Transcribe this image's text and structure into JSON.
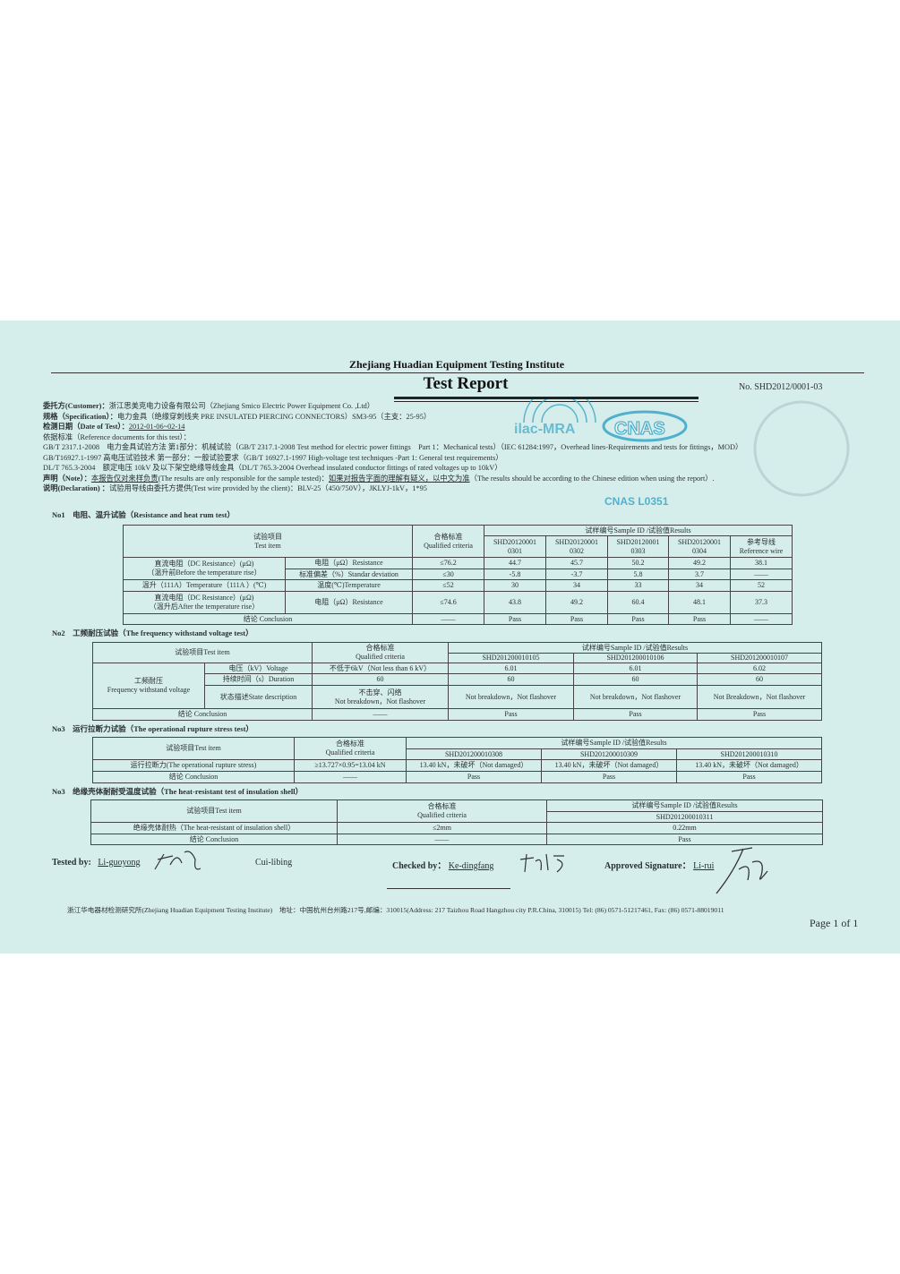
{
  "header": {
    "institute": "Zhejiang Huadian Equipment Testing Institute",
    "title": "Test Report",
    "report_no": "No. SHD2012/0001-03"
  },
  "info": {
    "customer_label": "委托方(Customer)：",
    "customer": "浙江思美克电力设备有限公司（Zhejiang Smico Electric Power Equipment Co. ,Ltd）",
    "spec_label": "规格（Specification）：",
    "spec": "电力金具（绝缘穿刺线夹 PRE INSULATED PIERCING CONNECTORS）SM3-95（主支：25-95）",
    "date_label": "检测日期（Date of Test）：",
    "date": "2012-01-06~02-14",
    "ref_label": "依据标准（Reference documents for this test）：",
    "ref1": "GB/T 2317.1-2008　电力金具试验方法 第1部分：机械试验（GB/T 2317.1-2008 Test method for electric power fittings　Part 1：Mechanical tests）（IEC 61284:1997，Overhead lines-Requirements and tests for fittings，MOD）",
    "ref2": "GB/T16927.1-1997 高电压试验技术 第一部分：一般试验要求（GB/T 16927.1-1997 High-voltage test techniques -Part 1: General test requirements）",
    "ref3": "DL/T 765.3-2004　额定电压 10kV 及以下架空绝缘导线金具（DL/T 765.3-2004 Overhead insulated conductor fittings of rated voltages up to 10kV）",
    "note_label": "声明（Note）：",
    "note_cn1": "本报告仅对来样负责",
    "note_en1": "(The results are only responsible for the sample tested)：",
    "note_cn2": "如果对报告字面的理解有疑义，以中文为准",
    "note_en2": "（The results should be according to the Chinese edition when using the report）.",
    "decl_label": "说明(Declaration) ：",
    "decl": "试验用导线由委托方提供(Test wire provided by the client)：BLV-25（450/750V），JKLYJ-1kV，1*95"
  },
  "stamps": {
    "ilac": "ilac-MRA",
    "cnas": "CNAS",
    "cnas_no": "CNAS L0351",
    "seal": "浙江华电器材检测研究所 检验专用章"
  },
  "colors": {
    "paper": "#d6eeeb",
    "stamp": "#3aa6c8"
  },
  "t1": {
    "heading": "No1　电阻、温升试验（Resistance and heat rum test）",
    "h_item": "试验项目",
    "h_item_en": "Test item",
    "h_crit": "合格标准",
    "h_crit_en": "Qualified criteria",
    "h_results": "试样编号Sample ID /试验值Results",
    "samples": [
      [
        "SHD20120001",
        "0301"
      ],
      [
        "SHD20120001",
        "0302"
      ],
      [
        "SHD20120001",
        "0303"
      ],
      [
        "SHD20120001",
        "0304"
      ],
      [
        "参考导线",
        "Reference wire"
      ]
    ],
    "rows": [
      {
        "item": "直流电阻（DC Resistance）(μΩ)",
        "item2": "（温升前Before the temperature rise）",
        "sub": "电阻（μΩ）Resistance",
        "crit": "≤76.2",
        "vals": [
          "44.7",
          "45.7",
          "50.2",
          "49.2",
          "38.1"
        ]
      },
      {
        "sub": "标准偏差（%）Standar deviation",
        "crit": "≤30",
        "vals": [
          "-5.8",
          "-3.7",
          "5.8",
          "3.7",
          "——"
        ]
      },
      {
        "item": "温升（111A）Temperature（111A ）(℃)",
        "sub": "温度(℃)Temperature",
        "crit": "≤52",
        "vals": [
          "30",
          "34",
          "33",
          "34",
          "52"
        ]
      },
      {
        "item": "直流电阻（DC Resistance）(μΩ)",
        "item2": "（温升后After the temperature rise）",
        "sub": "电阻（μΩ）Resistance",
        "crit": "≤74.6",
        "vals": [
          "43.8",
          "49.2",
          "60.4",
          "48.1",
          "37.3"
        ]
      }
    ],
    "conclusion": "结论 Conclusion",
    "conc_crit": "——",
    "conc_vals": [
      "Pass",
      "Pass",
      "Pass",
      "Pass",
      "——"
    ]
  },
  "t2": {
    "heading": "No2　工频耐压试验（The frequency withstand voltage test）",
    "h_item": "试验项目Test item",
    "h_crit": "合格标准",
    "h_crit_en": "Qualified criteria",
    "h_results": "试样编号Sample ID /试验值Results",
    "samples": [
      "SHD201200010105",
      "SHD201200010106",
      "SHD201200010107"
    ],
    "group": "工频耐压",
    "group_en": "Frequency withstand voltage",
    "rows": [
      {
        "sub": "电压（kV）Voltage",
        "crit": "不低于6kV（Not less than 6 kV）",
        "vals": [
          "6.01",
          "6.01",
          "6.02"
        ]
      },
      {
        "sub": "持续时间（s）Duration",
        "crit": "60",
        "vals": [
          "60",
          "60",
          "60"
        ]
      },
      {
        "sub": "状态描述State description",
        "crit": "不击穿、闪络",
        "crit2": "Not breakdown，Not flashover",
        "vals": [
          "Not breakdown，Not flashover",
          "Not breakdown，Not flashover",
          "Not Breakdown，Not flashover"
        ]
      }
    ],
    "conclusion": "结论 Conclusion",
    "conc_crit": "——",
    "conc_vals": [
      "Pass",
      "Pass",
      "Pass"
    ]
  },
  "t3": {
    "heading": "No3　运行拉断力试验（The operational rupture stress test）",
    "h_item": "试验项目Test item",
    "h_crit": "合格标准",
    "h_crit_en": "Qualified criteria",
    "h_results": "试样编号Sample ID /试验值Results",
    "samples": [
      "SHD201200010308",
      "SHD201200010309",
      "SHD201200010310"
    ],
    "item": "运行拉断力(The operational rupture stress)",
    "crit": "≥13.727×0.95=13.04 kN",
    "vals": [
      "13.40 kN，未破坏（Not damaged）",
      "13.40 kN，未破坏（Not damaged）",
      "13.40 kN，未破坏（Not damaged）"
    ],
    "conclusion": "结论 Conclusion",
    "conc_crit": "——",
    "conc_vals": [
      "Pass",
      "Pass",
      "Pass"
    ]
  },
  "t4": {
    "heading": "No3　绝缘壳体耐耐受温度试验（The heat-resistant test of insulation shell）",
    "h_item": "试验项目Test item",
    "h_crit": "合格标准",
    "h_crit_en": "Qualified criteria",
    "h_results": "试样编号Sample ID /试验值Results",
    "sample": "SHD201200010311",
    "item": "绝缘壳体耐热（The heat-resistant of insulation shell）",
    "crit": "≤2mm",
    "val": "0.22mm",
    "conclusion": "结论 Conclusion",
    "conc_crit": "——",
    "conc_val": "Pass"
  },
  "signatures": {
    "tested_label": "Tested by:",
    "tested1": "Li-guoyong",
    "tested2": "Cui-libing",
    "checked_label": "Checked by：",
    "checked": "Ke-dingfang",
    "approved_label": "Approved Signature：",
    "approved": "Li-rui"
  },
  "footer": {
    "address": "浙江华电器材检测研究所(Zhejiang Huadian Equipment Testing Institute)　地址：中国杭州台州路217号,邮编：310015(Address: 217 Taizhou Road Hangzhou city P.R.China, 310015) Tel: (86) 0571-51217461, Fax: (86) 0571-88019011",
    "page": "Page 1 of 1"
  }
}
